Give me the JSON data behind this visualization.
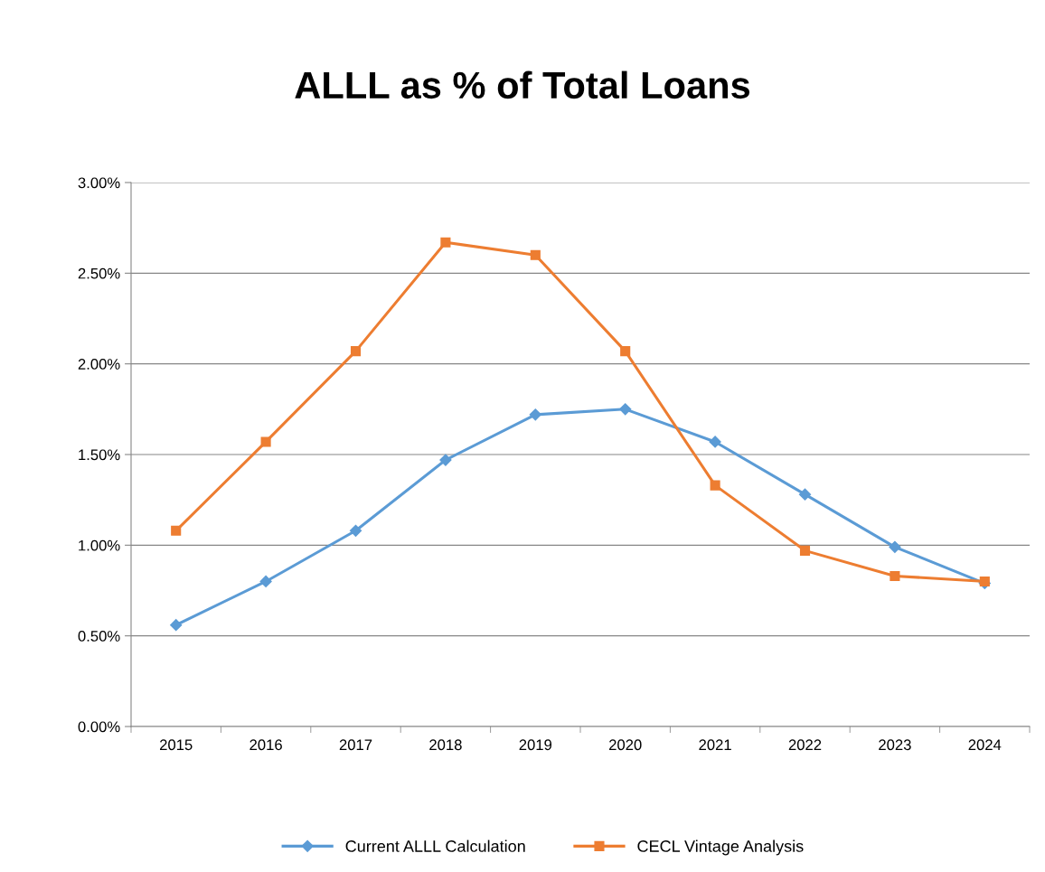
{
  "chart_data": {
    "type": "line",
    "title": "ALLL as % of Total Loans",
    "categories": [
      "2015",
      "2016",
      "2017",
      "2018",
      "2019",
      "2020",
      "2021",
      "2022",
      "2023",
      "2024"
    ],
    "series": [
      {
        "name": "Current ALLL Calculation",
        "color": "#5b9bd5",
        "marker": "diamond",
        "values": [
          0.56,
          0.8,
          1.08,
          1.47,
          1.72,
          1.75,
          1.57,
          1.28,
          0.99,
          0.79
        ]
      },
      {
        "name": "CECL Vintage Analysis",
        "color": "#ed7d31",
        "marker": "square",
        "values": [
          1.08,
          1.57,
          2.07,
          2.67,
          2.6,
          2.07,
          1.33,
          0.97,
          0.83,
          0.8
        ]
      }
    ],
    "ylim": [
      0,
      3
    ],
    "yticks": [
      {
        "value": 0,
        "label": "0.00%"
      },
      {
        "value": 0.5,
        "label": "0.50%"
      },
      {
        "value": 1,
        "label": "1.00%"
      },
      {
        "value": 1.5,
        "label": "1.50%"
      },
      {
        "value": 2,
        "label": "2.00%"
      },
      {
        "value": 2.5,
        "label": "2.50%"
      },
      {
        "value": 3,
        "label": "3.00%"
      }
    ],
    "grid": "y",
    "legend": "bottom",
    "line_style": "solid"
  }
}
